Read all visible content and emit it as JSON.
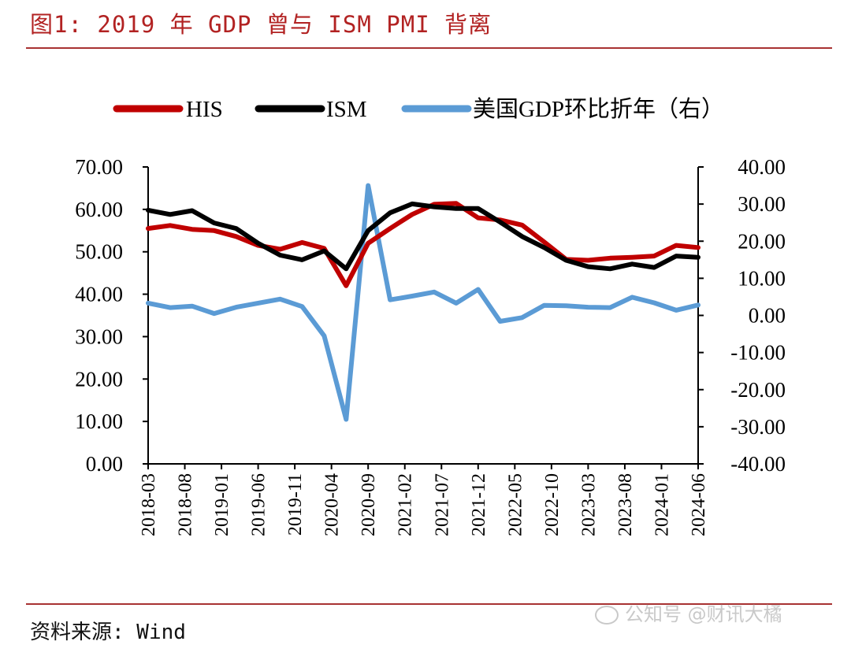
{
  "header": {
    "title": "图1: 2019 年 GDP 曾与 ISM PMI 背离"
  },
  "footer": {
    "source": "资料来源: Wind",
    "watermark": "公知号 @财讯大橘"
  },
  "colors": {
    "his": "#c00000",
    "ism": "#000000",
    "gdp": "#5b9bd5",
    "rule": "#a83232",
    "title": "#b22222"
  },
  "chart_data": {
    "type": "line",
    "title": "",
    "xlabel": "",
    "ylabel": "",
    "legend_position": "top",
    "grid": false,
    "y_left_ticks": [
      "70.00",
      "60.00",
      "50.00",
      "40.00",
      "30.00",
      "20.00",
      "10.00",
      "0.00"
    ],
    "y_right_ticks": [
      "40.00",
      "30.00",
      "20.00",
      "10.00",
      "0.00",
      "-10.00",
      "-20.00",
      "-30.00",
      "-40.00"
    ],
    "ylim_left": [
      0,
      70
    ],
    "ylim_right": [
      -40,
      40
    ],
    "x_tick_labels": [
      "2018-03",
      "2018-08",
      "2019-01",
      "2019-06",
      "2019-11",
      "2020-04",
      "2020-09",
      "2021-02",
      "2021-07",
      "2021-12",
      "2022-05",
      "2022-10",
      "2023-03",
      "2023-08",
      "2024-01",
      "2024-06"
    ],
    "x": [
      "2018-03",
      "2018-06",
      "2018-09",
      "2018-12",
      "2019-03",
      "2019-06",
      "2019-09",
      "2019-12",
      "2020-03",
      "2020-06",
      "2020-09",
      "2020-12",
      "2021-03",
      "2021-06",
      "2021-09",
      "2021-12",
      "2022-03",
      "2022-06",
      "2022-09",
      "2022-12",
      "2023-03",
      "2023-06",
      "2023-09",
      "2023-12",
      "2024-03",
      "2024-06"
    ],
    "series": [
      {
        "name": "HIS",
        "axis": "left",
        "values": [
          55.5,
          56.2,
          55.3,
          55.0,
          53.6,
          51.5,
          50.6,
          52.2,
          50.8,
          42.0,
          52.0,
          55.5,
          58.8,
          61.2,
          61.4,
          58.0,
          57.5,
          56.3,
          52.3,
          48.2,
          48.0,
          48.5,
          48.7,
          49.0,
          51.5,
          51.0
        ]
      },
      {
        "name": "ISM",
        "axis": "left",
        "values": [
          59.8,
          58.8,
          59.7,
          56.8,
          55.5,
          52.0,
          49.2,
          48.1,
          50.2,
          46.0,
          55.0,
          59.2,
          61.3,
          60.6,
          60.2,
          60.2,
          57.0,
          53.6,
          51.0,
          48.0,
          46.5,
          46.0,
          47.1,
          46.3,
          49.0,
          48.7
        ]
      },
      {
        "name": "美国GDP环比折年（右）",
        "axis": "right",
        "values": [
          3.3,
          2.1,
          2.5,
          0.5,
          2.2,
          3.3,
          4.4,
          2.4,
          -5.5,
          -28.0,
          35.0,
          4.2,
          5.2,
          6.3,
          3.3,
          7.0,
          -1.6,
          -0.6,
          2.7,
          2.6,
          2.2,
          2.1,
          4.9,
          3.4,
          1.4,
          2.8
        ]
      }
    ]
  }
}
